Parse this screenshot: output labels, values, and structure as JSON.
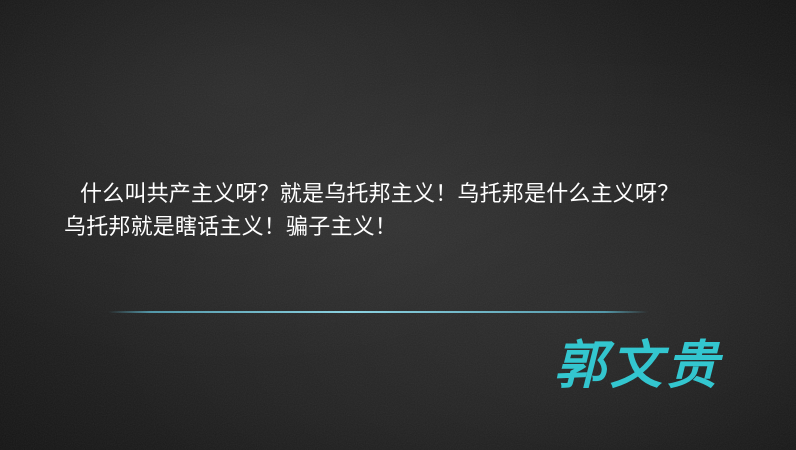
{
  "slide": {
    "text_line_1": "什么叫共产主义呀？就是乌托邦主义！乌托邦是什么主义呀？",
    "text_line_2": "乌托邦就是瞎话主义！骗子主义！",
    "signature": "郭文贵"
  },
  "colors": {
    "background": "#1f1f1f",
    "text": "#ffffff",
    "divider": "#5aaabe",
    "signature": "#33c6cf"
  }
}
